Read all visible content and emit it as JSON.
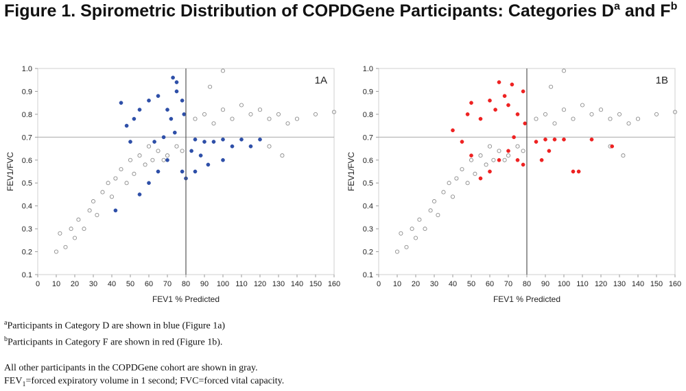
{
  "figure": {
    "title_main": "Figure 1. Spirometric Distribution of COPDGene Participants: Categories D",
    "title_sup_a": "a",
    "title_and": " and F",
    "title_sup_b": "b"
  },
  "colors": {
    "gray_marker": "#8c8c8c",
    "category_d": "#2e4fa8",
    "category_f": "#ee2222",
    "refline": "#b0b0b0",
    "refline_x": "#555555"
  },
  "chart_data": [
    {
      "type": "scatter",
      "panel_label": "1A",
      "xlabel": "FEV1 % Predicted",
      "ylabel": "FEV1/FVC",
      "xlim": [
        0,
        160
      ],
      "ylim": [
        0.1,
        1.0
      ],
      "xticks": [
        0,
        10,
        20,
        30,
        40,
        50,
        60,
        70,
        80,
        90,
        100,
        110,
        120,
        130,
        140,
        150,
        160
      ],
      "yticks": [
        0.1,
        0.2,
        0.3,
        0.4,
        0.5,
        0.6,
        0.7,
        0.8,
        0.9,
        1.0
      ],
      "reference_lines": {
        "x": 80,
        "y": 0.7
      },
      "series": [
        {
          "name": "All other participants",
          "marker": "open-circle",
          "color": "#8c8c8c",
          "points": [
            [
              10,
              0.2
            ],
            [
              12,
              0.28
            ],
            [
              15,
              0.22
            ],
            [
              18,
              0.3
            ],
            [
              20,
              0.26
            ],
            [
              22,
              0.34
            ],
            [
              25,
              0.3
            ],
            [
              28,
              0.38
            ],
            [
              30,
              0.42
            ],
            [
              32,
              0.36
            ],
            [
              35,
              0.46
            ],
            [
              38,
              0.5
            ],
            [
              40,
              0.44
            ],
            [
              42,
              0.52
            ],
            [
              45,
              0.56
            ],
            [
              48,
              0.5
            ],
            [
              50,
              0.6
            ],
            [
              52,
              0.54
            ],
            [
              55,
              0.62
            ],
            [
              58,
              0.58
            ],
            [
              60,
              0.66
            ],
            [
              62,
              0.6
            ],
            [
              65,
              0.64
            ],
            [
              68,
              0.6
            ],
            [
              70,
              0.62
            ],
            [
              75,
              0.66
            ],
            [
              78,
              0.64
            ],
            [
              85,
              0.78
            ],
            [
              90,
              0.8
            ],
            [
              95,
              0.76
            ],
            [
              100,
              0.82
            ],
            [
              105,
              0.78
            ],
            [
              110,
              0.84
            ],
            [
              115,
              0.8
            ],
            [
              120,
              0.82
            ],
            [
              125,
              0.78
            ],
            [
              130,
              0.8
            ],
            [
              135,
              0.76
            ],
            [
              140,
              0.78
            ],
            [
              150,
              0.8
            ],
            [
              160,
              0.81
            ],
            [
              100,
              0.99
            ],
            [
              93,
              0.92
            ],
            [
              125,
              0.66
            ],
            [
              132,
              0.62
            ]
          ]
        },
        {
          "name": "Category D",
          "marker": "filled-circle",
          "color": "#2e4fa8",
          "points": [
            [
              45,
              0.85
            ],
            [
              48,
              0.75
            ],
            [
              52,
              0.78
            ],
            [
              55,
              0.82
            ],
            [
              60,
              0.86
            ],
            [
              65,
              0.88
            ],
            [
              70,
              0.82
            ],
            [
              72,
              0.78
            ],
            [
              75,
              0.9
            ],
            [
              78,
              0.86
            ],
            [
              74,
              0.72
            ],
            [
              79,
              0.8
            ],
            [
              85,
              0.69
            ],
            [
              90,
              0.68
            ],
            [
              95,
              0.68
            ],
            [
              100,
              0.69
            ],
            [
              105,
              0.66
            ],
            [
              110,
              0.69
            ],
            [
              115,
              0.66
            ],
            [
              120,
              0.69
            ],
            [
              88,
              0.62
            ],
            [
              92,
              0.58
            ],
            [
              100,
              0.6
            ],
            [
              70,
              0.6
            ],
            [
              65,
              0.55
            ],
            [
              60,
              0.5
            ],
            [
              55,
              0.45
            ],
            [
              50,
              0.68
            ],
            [
              63,
              0.68
            ],
            [
              68,
              0.7
            ],
            [
              73,
              0.96
            ],
            [
              75,
              0.94
            ],
            [
              85,
              0.55
            ],
            [
              42,
              0.38
            ],
            [
              78,
              0.55
            ],
            [
              80,
              0.52
            ],
            [
              83,
              0.64
            ]
          ]
        }
      ]
    },
    {
      "type": "scatter",
      "panel_label": "1B",
      "xlabel": "FEV1 % Predicted",
      "ylabel": "FEV1/FVC",
      "xlim": [
        0,
        160
      ],
      "ylim": [
        0.1,
        1.0
      ],
      "xticks": [
        0,
        10,
        20,
        30,
        40,
        50,
        60,
        70,
        80,
        90,
        100,
        110,
        120,
        130,
        140,
        150,
        160
      ],
      "yticks": [
        0.1,
        0.2,
        0.3,
        0.4,
        0.5,
        0.6,
        0.7,
        0.8,
        0.9,
        1.0
      ],
      "reference_lines": {
        "x": 80,
        "y": 0.7
      },
      "series": [
        {
          "name": "All other participants",
          "marker": "open-circle",
          "color": "#8c8c8c",
          "points": [
            [
              10,
              0.2
            ],
            [
              12,
              0.28
            ],
            [
              15,
              0.22
            ],
            [
              18,
              0.3
            ],
            [
              20,
              0.26
            ],
            [
              22,
              0.34
            ],
            [
              25,
              0.3
            ],
            [
              28,
              0.38
            ],
            [
              30,
              0.42
            ],
            [
              32,
              0.36
            ],
            [
              35,
              0.46
            ],
            [
              38,
              0.5
            ],
            [
              40,
              0.44
            ],
            [
              42,
              0.52
            ],
            [
              45,
              0.56
            ],
            [
              48,
              0.5
            ],
            [
              50,
              0.6
            ],
            [
              52,
              0.54
            ],
            [
              55,
              0.62
            ],
            [
              58,
              0.58
            ],
            [
              60,
              0.66
            ],
            [
              62,
              0.6
            ],
            [
              65,
              0.64
            ],
            [
              68,
              0.6
            ],
            [
              70,
              0.62
            ],
            [
              75,
              0.66
            ],
            [
              78,
              0.64
            ],
            [
              85,
              0.78
            ],
            [
              90,
              0.8
            ],
            [
              95,
              0.76
            ],
            [
              100,
              0.82
            ],
            [
              105,
              0.78
            ],
            [
              110,
              0.84
            ],
            [
              115,
              0.8
            ],
            [
              120,
              0.82
            ],
            [
              125,
              0.78
            ],
            [
              130,
              0.8
            ],
            [
              135,
              0.76
            ],
            [
              140,
              0.78
            ],
            [
              150,
              0.8
            ],
            [
              160,
              0.81
            ],
            [
              100,
              0.99
            ],
            [
              93,
              0.92
            ],
            [
              125,
              0.66
            ],
            [
              132,
              0.62
            ]
          ]
        },
        {
          "name": "Category F",
          "marker": "filled-circle",
          "color": "#ee2222",
          "points": [
            [
              40,
              0.73
            ],
            [
              45,
              0.68
            ],
            [
              48,
              0.8
            ],
            [
              50,
              0.85
            ],
            [
              55,
              0.78
            ],
            [
              60,
              0.86
            ],
            [
              63,
              0.82
            ],
            [
              65,
              0.94
            ],
            [
              68,
              0.88
            ],
            [
              70,
              0.84
            ],
            [
              72,
              0.93
            ],
            [
              75,
              0.8
            ],
            [
              78,
              0.9
            ],
            [
              79,
              0.76
            ],
            [
              73,
              0.7
            ],
            [
              65,
              0.6
            ],
            [
              60,
              0.55
            ],
            [
              55,
              0.52
            ],
            [
              70,
              0.64
            ],
            [
              75,
              0.6
            ],
            [
              85,
              0.68
            ],
            [
              90,
              0.69
            ],
            [
              95,
              0.69
            ],
            [
              100,
              0.69
            ],
            [
              105,
              0.55
            ],
            [
              108,
              0.55
            ],
            [
              115,
              0.69
            ],
            [
              126,
              0.66
            ],
            [
              88,
              0.6
            ],
            [
              92,
              0.64
            ],
            [
              78,
              0.58
            ],
            [
              50,
              0.62
            ]
          ]
        }
      ]
    }
  ],
  "notes": {
    "note_a_sup": "a",
    "note_a": "Participants in Category D are shown in blue (Figure 1a)",
    "note_b_sup": "b",
    "note_b": "Participants in Category F are shown in red (Figure 1b).",
    "note_other": "All other participants in the COPDGene cohort are shown in gray.",
    "note_abbrev_prefix": "FEV",
    "note_abbrev_sub": "1",
    "note_abbrev_rest": "=forced expiratory volume in 1 second; FVC=forced vital capacity."
  }
}
